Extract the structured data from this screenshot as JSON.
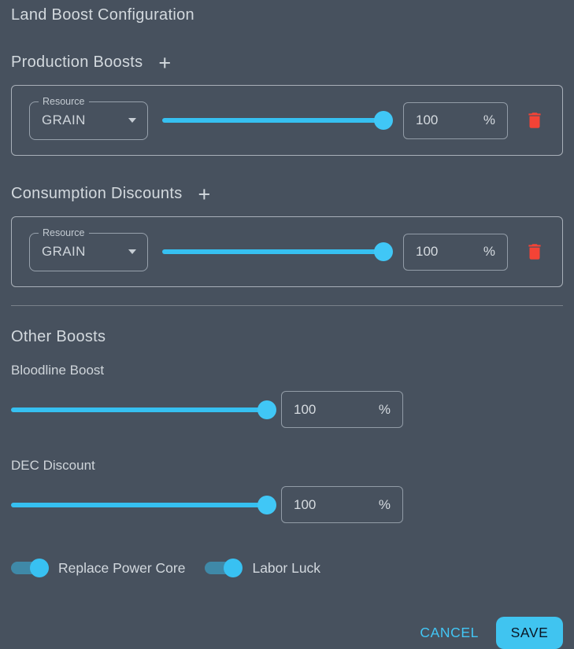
{
  "title": "Land Boost Configuration",
  "colors": {
    "background": "#47515e",
    "accent": "#38c1f2",
    "danger": "#f44336"
  },
  "sections": {
    "production": {
      "title": "Production Boosts",
      "add_label": "+",
      "rows": [
        {
          "resource_label": "Resource",
          "resource_value": "GRAIN",
          "slider_percent": 100,
          "percent_value": "100",
          "percent_suffix": "%"
        }
      ]
    },
    "consumption": {
      "title": "Consumption Discounts",
      "add_label": "+",
      "rows": [
        {
          "resource_label": "Resource",
          "resource_value": "GRAIN",
          "slider_percent": 100,
          "percent_value": "100",
          "percent_suffix": "%"
        }
      ]
    },
    "other": {
      "title": "Other Boosts",
      "sliders": [
        {
          "label": "Bloodline Boost",
          "slider_percent": 100,
          "percent_value": "100",
          "percent_suffix": "%"
        },
        {
          "label": "DEC Discount",
          "slider_percent": 100,
          "percent_value": "100",
          "percent_suffix": "%"
        }
      ],
      "toggles": [
        {
          "label": "Replace Power Core",
          "on": true
        },
        {
          "label": "Labor Luck",
          "on": true
        }
      ]
    }
  },
  "footer": {
    "cancel_label": "CANCEL",
    "save_label": "SAVE"
  }
}
